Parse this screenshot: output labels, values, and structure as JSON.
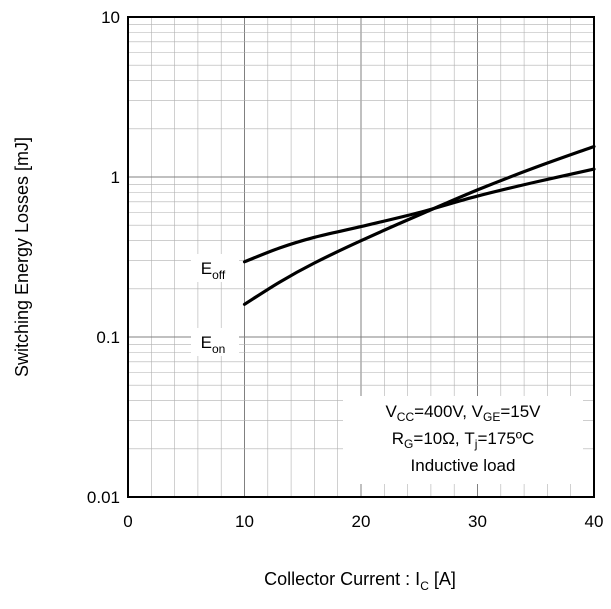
{
  "chart_data": {
    "type": "line",
    "xlabel": {
      "main": "Collector Current : I",
      "sub": "C",
      "unit": " [A]"
    },
    "ylabel": "Switching Energy Losses [mJ]",
    "xlim": [
      0,
      40
    ],
    "ylim": [
      0.01,
      10
    ],
    "yscale": "log",
    "grid": true,
    "x_ticks": [
      0,
      10,
      20,
      30,
      40
    ],
    "x_tick_labels": [
      "0",
      "10",
      "20",
      "30",
      "40"
    ],
    "y_ticks": [
      0.01,
      0.1,
      1,
      10
    ],
    "y_tick_labels": [
      "0.01",
      "0.1",
      "1",
      "10"
    ],
    "series": [
      {
        "name": "E_off",
        "label_main": "E",
        "label_sub": "off",
        "x": [
          10,
          13,
          16,
          20,
          25,
          30,
          35,
          40
        ],
        "y": [
          0.295,
          0.36,
          0.42,
          0.49,
          0.6,
          0.76,
          0.93,
          1.12
        ]
      },
      {
        "name": "E_on",
        "label_main": "E",
        "label_sub": "on",
        "x": [
          10,
          13,
          16,
          20,
          25,
          30,
          35,
          40
        ],
        "y": [
          0.16,
          0.22,
          0.29,
          0.4,
          0.58,
          0.83,
          1.15,
          1.55
        ]
      }
    ],
    "conditions": [
      [
        {
          "t": "V"
        },
        {
          "t": "CC",
          "sub": true
        },
        {
          "t": "=400V, V"
        },
        {
          "t": "GE",
          "sub": true
        },
        {
          "t": "=15V"
        }
      ],
      [
        {
          "t": "R"
        },
        {
          "t": "G",
          "sub": true
        },
        {
          "t": "=10Ω, T"
        },
        {
          "t": "j",
          "sub": true
        },
        {
          "t": "=175ºC"
        }
      ],
      [
        {
          "t": "Inductive load"
        }
      ]
    ],
    "colors": {
      "curve": "#000000",
      "major_grid": "#808080",
      "minor_grid": "#b0b0b0",
      "frame": "#000000"
    }
  }
}
